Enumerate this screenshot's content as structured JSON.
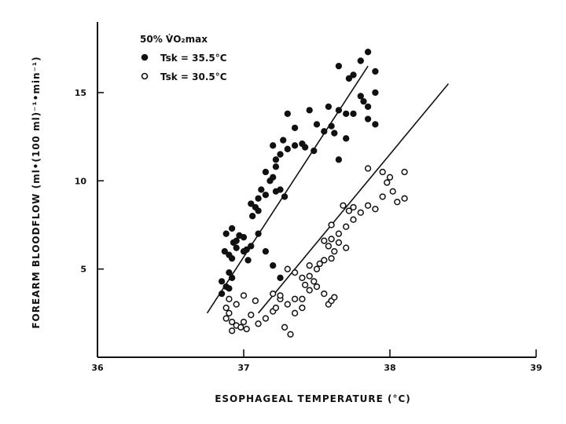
{
  "chart_data": {
    "type": "scatter",
    "xlabel": "ESOPHAGEAL TEMPERATURE (°C)",
    "ylabel": "FOREARM BLOODFLOW (ml•(100 ml)⁻¹•min⁻¹)",
    "xlim": [
      36,
      39
    ],
    "ylim": [
      0,
      19
    ],
    "x_ticks": [
      36,
      37,
      38,
      39
    ],
    "y_ticks": [
      5,
      10,
      15
    ],
    "legend": {
      "title": "50% V̇O₂max",
      "entries": [
        {
          "marker": "filled-circle",
          "label": "Tsk = 35.5°C"
        },
        {
          "marker": "open-circle",
          "label": "Tsk = 30.5°C"
        }
      ]
    },
    "series": [
      {
        "marker": "filled",
        "color": "#111111",
        "fit_line": [
          [
            36.75,
            2.5
          ],
          [
            37.85,
            16.5
          ]
        ],
        "points": [
          [
            36.85,
            3.6
          ],
          [
            36.88,
            4.0
          ],
          [
            36.9,
            3.9
          ],
          [
            36.92,
            4.5
          ],
          [
            36.85,
            4.3
          ],
          [
            36.92,
            5.6
          ],
          [
            36.95,
            6.2
          ],
          [
            37.0,
            6.8
          ],
          [
            37.02,
            6.1
          ],
          [
            37.05,
            6.3
          ],
          [
            36.87,
            6.0
          ],
          [
            36.9,
            5.8
          ],
          [
            36.93,
            6.5
          ],
          [
            36.97,
            6.9
          ],
          [
            37.03,
            5.5
          ],
          [
            37.0,
            6.0
          ],
          [
            36.88,
            7.0
          ],
          [
            36.92,
            7.3
          ],
          [
            36.95,
            6.6
          ],
          [
            36.9,
            4.8
          ],
          [
            37.1,
            7.0
          ],
          [
            37.15,
            6.0
          ],
          [
            37.2,
            5.2
          ],
          [
            37.25,
            4.5
          ],
          [
            37.1,
            9.0
          ],
          [
            37.12,
            9.5
          ],
          [
            37.06,
            8.0
          ],
          [
            37.08,
            8.5
          ],
          [
            37.1,
            8.3
          ],
          [
            37.15,
            9.2
          ],
          [
            37.18,
            10.0
          ],
          [
            37.2,
            10.2
          ],
          [
            37.22,
            10.8
          ],
          [
            37.22,
            11.2
          ],
          [
            37.25,
            11.5
          ],
          [
            37.2,
            12.0
          ],
          [
            37.27,
            12.3
          ],
          [
            37.25,
            9.5
          ],
          [
            37.28,
            9.1
          ],
          [
            37.22,
            9.4
          ],
          [
            37.3,
            11.8
          ],
          [
            37.35,
            12.0
          ],
          [
            37.4,
            12.1
          ],
          [
            37.42,
            11.9
          ],
          [
            37.48,
            11.7
          ],
          [
            37.3,
            13.8
          ],
          [
            37.35,
            13.0
          ],
          [
            37.45,
            14.0
          ],
          [
            37.5,
            13.2
          ],
          [
            37.55,
            12.8
          ],
          [
            37.6,
            13.1
          ],
          [
            37.62,
            12.7
          ],
          [
            37.58,
            14.2
          ],
          [
            37.65,
            14.0
          ],
          [
            37.7,
            13.8
          ],
          [
            37.72,
            15.8
          ],
          [
            37.8,
            16.8
          ],
          [
            37.85,
            17.3
          ],
          [
            37.75,
            16.0
          ],
          [
            37.65,
            16.5
          ],
          [
            37.9,
            16.2
          ],
          [
            37.9,
            15.0
          ],
          [
            37.82,
            14.5
          ],
          [
            37.85,
            14.2
          ],
          [
            37.8,
            14.8
          ],
          [
            37.75,
            13.8
          ],
          [
            37.65,
            11.2
          ],
          [
            37.7,
            12.4
          ],
          [
            37.85,
            13.5
          ],
          [
            37.9,
            13.2
          ],
          [
            37.05,
            8.7
          ],
          [
            37.15,
            10.5
          ]
        ]
      },
      {
        "marker": "open",
        "color": "#111111",
        "fit_line": [
          [
            37.1,
            2.5
          ],
          [
            38.4,
            15.5
          ]
        ],
        "points": [
          [
            36.88,
            2.8
          ],
          [
            36.9,
            2.5
          ],
          [
            36.92,
            2.0
          ],
          [
            36.95,
            1.8
          ],
          [
            36.98,
            1.7
          ],
          [
            37.0,
            2.0
          ],
          [
            37.02,
            1.6
          ],
          [
            37.05,
            2.4
          ],
          [
            37.08,
            3.2
          ],
          [
            37.0,
            3.5
          ],
          [
            36.95,
            3.0
          ],
          [
            36.9,
            3.3
          ],
          [
            36.88,
            2.2
          ],
          [
            36.92,
            1.5
          ],
          [
            37.1,
            1.9
          ],
          [
            37.15,
            2.2
          ],
          [
            37.2,
            2.6
          ],
          [
            37.22,
            2.8
          ],
          [
            37.25,
            3.3
          ],
          [
            37.3,
            3.0
          ],
          [
            37.35,
            2.5
          ],
          [
            37.28,
            1.7
          ],
          [
            37.32,
            1.3
          ],
          [
            37.35,
            3.3
          ],
          [
            37.4,
            2.8
          ],
          [
            37.4,
            3.3
          ],
          [
            37.45,
            3.8
          ],
          [
            37.42,
            4.1
          ],
          [
            37.48,
            4.3
          ],
          [
            37.5,
            4.0
          ],
          [
            37.55,
            3.6
          ],
          [
            37.58,
            3.0
          ],
          [
            37.6,
            3.2
          ],
          [
            37.62,
            3.4
          ],
          [
            37.45,
            4.6
          ],
          [
            37.5,
            5.0
          ],
          [
            37.52,
            5.3
          ],
          [
            37.55,
            5.5
          ],
          [
            37.6,
            5.6
          ],
          [
            37.62,
            6.0
          ],
          [
            37.58,
            6.3
          ],
          [
            37.55,
            6.6
          ],
          [
            37.6,
            6.7
          ],
          [
            37.65,
            6.5
          ],
          [
            37.7,
            6.2
          ],
          [
            37.65,
            7.0
          ],
          [
            37.7,
            7.4
          ],
          [
            37.75,
            7.8
          ],
          [
            37.68,
            8.6
          ],
          [
            37.72,
            8.3
          ],
          [
            37.75,
            8.5
          ],
          [
            37.8,
            8.2
          ],
          [
            37.85,
            8.6
          ],
          [
            37.9,
            8.4
          ],
          [
            37.95,
            9.1
          ],
          [
            37.95,
            10.5
          ],
          [
            38.0,
            10.2
          ],
          [
            38.02,
            9.4
          ],
          [
            38.05,
            8.8
          ],
          [
            38.1,
            9.0
          ],
          [
            38.1,
            10.5
          ],
          [
            37.85,
            10.7
          ],
          [
            37.98,
            9.9
          ],
          [
            37.6,
            7.5
          ],
          [
            37.4,
            4.5
          ],
          [
            37.35,
            4.8
          ],
          [
            37.3,
            5.0
          ],
          [
            37.45,
            5.2
          ],
          [
            37.25,
            3.5
          ],
          [
            37.2,
            3.6
          ]
        ]
      }
    ]
  }
}
